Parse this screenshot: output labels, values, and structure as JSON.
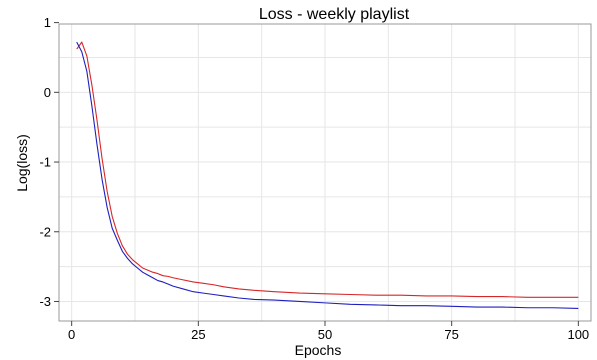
{
  "chart_data": {
    "type": "line",
    "title": "Loss - weekly playlist",
    "xlabel": "Epochs",
    "ylabel": "Log(loss)",
    "xlim": [
      -2.5,
      102.5
    ],
    "ylim": [
      -3.28,
      0.98
    ],
    "xticks": [
      0,
      25,
      50,
      75,
      100
    ],
    "yticks": [
      1,
      0,
      -1,
      -2,
      -3
    ],
    "ytick_labels": [
      "1",
      "0",
      "-1",
      "-2",
      "-3"
    ],
    "grid": true,
    "series": [
      {
        "color": "#d62728",
        "x": [
          1,
          2,
          3,
          4,
          5,
          6,
          7,
          8,
          9,
          10,
          11,
          12,
          13,
          14,
          15,
          16,
          17,
          18,
          19,
          20,
          22,
          24,
          26,
          28,
          30,
          33,
          36,
          40,
          45,
          50,
          55,
          60,
          65,
          70,
          75,
          80,
          85,
          90,
          95,
          100
        ],
        "y": [
          0.62,
          0.72,
          0.52,
          0.1,
          -0.4,
          -0.95,
          -1.42,
          -1.78,
          -2.02,
          -2.2,
          -2.32,
          -2.4,
          -2.46,
          -2.52,
          -2.55,
          -2.58,
          -2.6,
          -2.63,
          -2.64,
          -2.66,
          -2.69,
          -2.72,
          -2.74,
          -2.76,
          -2.79,
          -2.82,
          -2.84,
          -2.86,
          -2.88,
          -2.89,
          -2.9,
          -2.91,
          -2.91,
          -2.92,
          -2.92,
          -2.93,
          -2.93,
          -2.94,
          -2.94,
          -2.94
        ]
      },
      {
        "color": "#1f1fbf",
        "x": [
          1,
          2,
          3,
          4,
          5,
          6,
          7,
          8,
          9,
          10,
          11,
          12,
          13,
          14,
          15,
          16,
          17,
          18,
          19,
          20,
          22,
          24,
          26,
          28,
          30,
          33,
          36,
          40,
          45,
          50,
          55,
          60,
          65,
          70,
          75,
          80,
          85,
          90,
          95,
          100
        ],
        "y": [
          0.72,
          0.58,
          0.3,
          -0.2,
          -0.75,
          -1.25,
          -1.65,
          -1.95,
          -2.12,
          -2.28,
          -2.38,
          -2.46,
          -2.52,
          -2.58,
          -2.62,
          -2.66,
          -2.7,
          -2.72,
          -2.75,
          -2.78,
          -2.82,
          -2.86,
          -2.88,
          -2.9,
          -2.92,
          -2.95,
          -2.97,
          -2.98,
          -3.0,
          -3.02,
          -3.04,
          -3.05,
          -3.06,
          -3.06,
          -3.07,
          -3.08,
          -3.08,
          -3.09,
          -3.09,
          -3.1
        ]
      }
    ]
  }
}
